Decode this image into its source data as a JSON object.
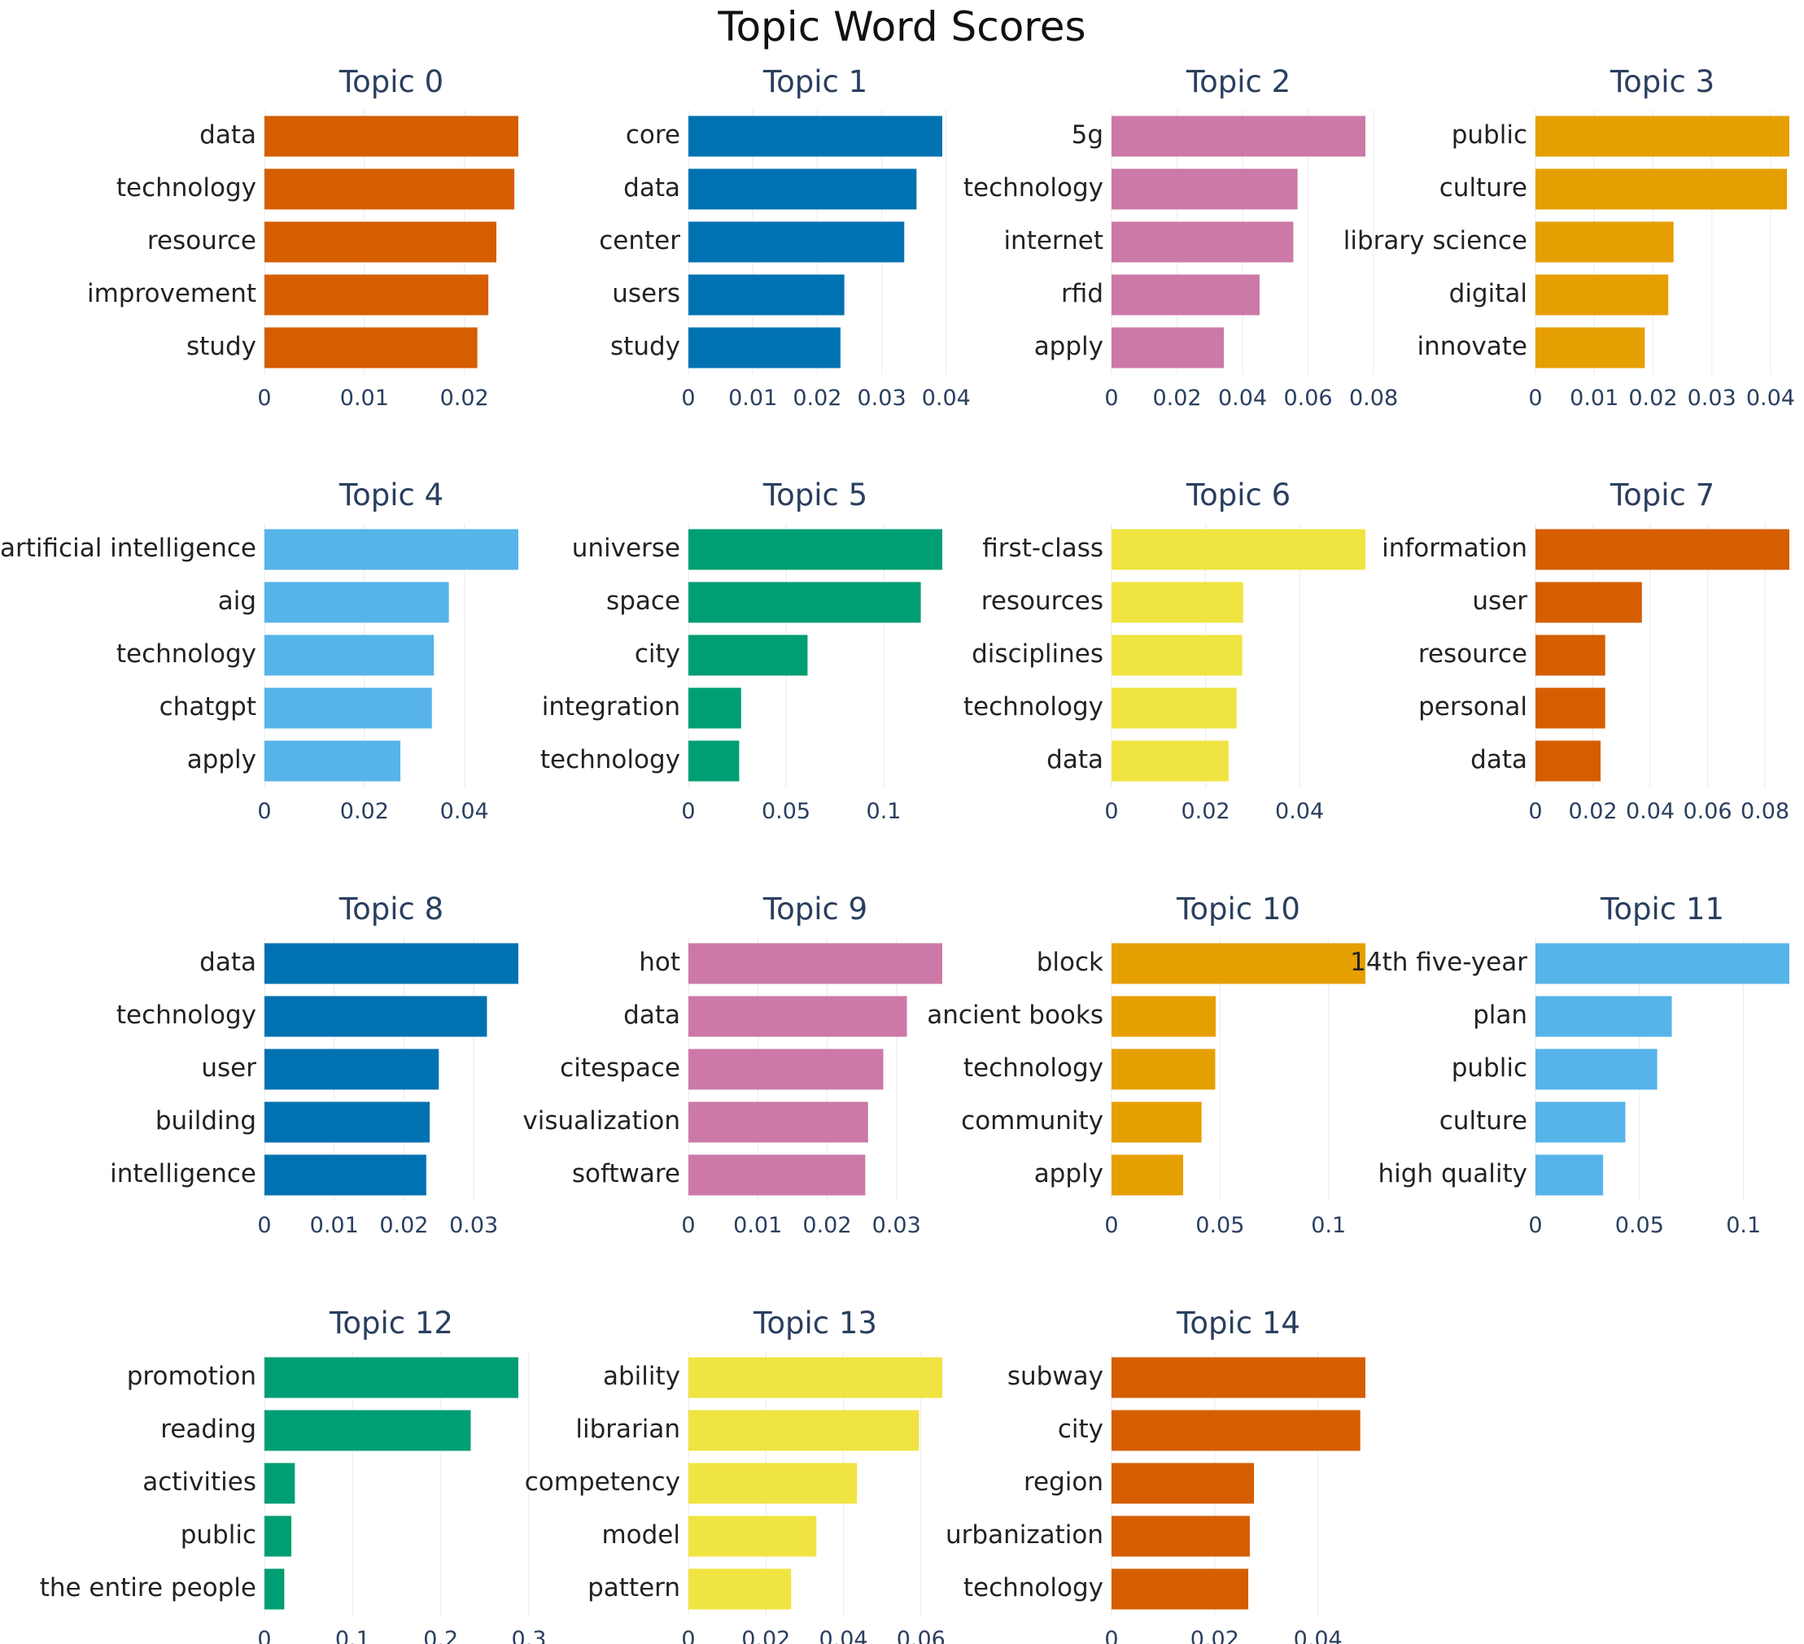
{
  "title": "Topic Word Scores",
  "chart_data": [
    {
      "type": "bar",
      "orientation": "horizontal",
      "title": "Topic 0",
      "color": "#d55e00",
      "categories": [
        "data",
        "technology",
        "resource",
        "improvement",
        "study"
      ],
      "values": [
        0.0254,
        0.025,
        0.0232,
        0.0224,
        0.0213
      ],
      "xlim": [
        0,
        0.0254
      ],
      "ticks": [
        0,
        0.01,
        0.02
      ],
      "tick_labels": [
        "0",
        "0.01",
        "0.02"
      ]
    },
    {
      "type": "bar",
      "orientation": "horizontal",
      "title": "Topic 1",
      "color": "#0072b2",
      "categories": [
        "core",
        "data",
        "center",
        "users",
        "study"
      ],
      "values": [
        0.0394,
        0.0354,
        0.0335,
        0.0242,
        0.0236
      ],
      "xlim": [
        0,
        0.0394
      ],
      "ticks": [
        0,
        0.01,
        0.02,
        0.03,
        0.04
      ],
      "tick_labels": [
        "0",
        "0.01",
        "0.02",
        "0.03",
        "0.04"
      ]
    },
    {
      "type": "bar",
      "orientation": "horizontal",
      "title": "Topic 2",
      "color": "#cc79a7",
      "categories": [
        "5g",
        "technology",
        "internet",
        "rfid",
        "apply"
      ],
      "values": [
        0.0775,
        0.0568,
        0.0555,
        0.0452,
        0.0343
      ],
      "xlim": [
        0,
        0.0775
      ],
      "ticks": [
        0,
        0.02,
        0.04,
        0.06,
        0.08
      ],
      "tick_labels": [
        "0",
        "0.02",
        "0.04",
        "0.06",
        "0.08"
      ]
    },
    {
      "type": "bar",
      "orientation": "horizontal",
      "title": "Topic 3",
      "color": "#e69f00",
      "categories": [
        "public",
        "culture",
        "library science",
        "digital",
        "innovate"
      ],
      "values": [
        0.0432,
        0.0428,
        0.0235,
        0.0226,
        0.0186
      ],
      "xlim": [
        0,
        0.0432
      ],
      "ticks": [
        0,
        0.01,
        0.02,
        0.03,
        0.04
      ],
      "tick_labels": [
        "0",
        "0.01",
        "0.02",
        "0.03",
        "0.04"
      ]
    },
    {
      "type": "bar",
      "orientation": "horizontal",
      "title": "Topic 4",
      "color": "#56b4e9",
      "categories": [
        "artificial intelligence",
        "aig",
        "technology",
        "chatgpt",
        "apply"
      ],
      "values": [
        0.0508,
        0.0369,
        0.0339,
        0.0335,
        0.0272
      ],
      "xlim": [
        0,
        0.0508
      ],
      "ticks": [
        0,
        0.02,
        0.04
      ],
      "tick_labels": [
        "0",
        "0.02",
        "0.04"
      ]
    },
    {
      "type": "bar",
      "orientation": "horizontal",
      "title": "Topic 5",
      "color": "#009e73",
      "categories": [
        "universe",
        "space",
        "city",
        "integration",
        "technology"
      ],
      "values": [
        0.13,
        0.119,
        0.061,
        0.027,
        0.026
      ],
      "xlim": [
        0,
        0.13
      ],
      "ticks": [
        0,
        0.05,
        0.1
      ],
      "tick_labels": [
        "0",
        "0.05",
        "0.1"
      ]
    },
    {
      "type": "bar",
      "orientation": "horizontal",
      "title": "Topic 6",
      "color": "#f0e442",
      "categories": [
        "first-class",
        "resources",
        "disciplines",
        "technology",
        "data"
      ],
      "values": [
        0.054,
        0.028,
        0.0278,
        0.0266,
        0.0249
      ],
      "xlim": [
        0,
        0.054
      ],
      "ticks": [
        0,
        0.02,
        0.04
      ],
      "tick_labels": [
        "0",
        "0.02",
        "0.04"
      ]
    },
    {
      "type": "bar",
      "orientation": "horizontal",
      "title": "Topic 7",
      "color": "#d55e00",
      "categories": [
        "information",
        "user",
        "resource",
        "personal",
        "data"
      ],
      "values": [
        0.0885,
        0.0371,
        0.0243,
        0.0243,
        0.0227
      ],
      "xlim": [
        0,
        0.0885
      ],
      "ticks": [
        0,
        0.02,
        0.04,
        0.06,
        0.08
      ],
      "tick_labels": [
        "0",
        "0.02",
        "0.04",
        "0.06",
        "0.08"
      ]
    },
    {
      "type": "bar",
      "orientation": "horizontal",
      "title": "Topic 8",
      "color": "#0072b2",
      "categories": [
        "data",
        "technology",
        "user",
        "building",
        "intelligence"
      ],
      "values": [
        0.0364,
        0.0319,
        0.025,
        0.0237,
        0.0232
      ],
      "xlim": [
        0,
        0.0364
      ],
      "ticks": [
        0,
        0.01,
        0.02,
        0.03
      ],
      "tick_labels": [
        "0",
        "0.01",
        "0.02",
        "0.03"
      ]
    },
    {
      "type": "bar",
      "orientation": "horizontal",
      "title": "Topic 9",
      "color": "#cc79a7",
      "categories": [
        "hot",
        "data",
        "citespace",
        "visualization",
        "software"
      ],
      "values": [
        0.0366,
        0.0315,
        0.0281,
        0.0259,
        0.0255
      ],
      "xlim": [
        0,
        0.0366
      ],
      "ticks": [
        0,
        0.01,
        0.02,
        0.03
      ],
      "tick_labels": [
        "0",
        "0.01",
        "0.02",
        "0.03"
      ]
    },
    {
      "type": "bar",
      "orientation": "horizontal",
      "title": "Topic 10",
      "color": "#e69f00",
      "categories": [
        "block",
        "ancient books",
        "technology",
        "community",
        "apply"
      ],
      "values": [
        0.117,
        0.048,
        0.0478,
        0.0415,
        0.033
      ],
      "xlim": [
        0,
        0.117
      ],
      "ticks": [
        0,
        0.05,
        0.1
      ],
      "tick_labels": [
        "0",
        "0.05",
        "0.1"
      ]
    },
    {
      "type": "bar",
      "orientation": "horizontal",
      "title": "Topic 11",
      "color": "#56b4e9",
      "categories": [
        "14th five-year",
        "plan",
        "public",
        "culture",
        "high quality"
      ],
      "values": [
        0.122,
        0.0655,
        0.0585,
        0.0432,
        0.0325
      ],
      "xlim": [
        0,
        0.122
      ],
      "ticks": [
        0,
        0.05,
        0.1
      ],
      "tick_labels": [
        "0",
        "0.05",
        "0.1"
      ]
    },
    {
      "type": "bar",
      "orientation": "horizontal",
      "title": "Topic 12",
      "color": "#009e73",
      "categories": [
        "promotion",
        "reading",
        "activities",
        "public",
        "the entire people"
      ],
      "values": [
        0.288,
        0.234,
        0.0345,
        0.0305,
        0.0225
      ],
      "xlim": [
        0,
        0.288
      ],
      "ticks": [
        0,
        0.1,
        0.2,
        0.3
      ],
      "tick_labels": [
        "0",
        "0.1",
        "0.2",
        "0.3"
      ]
    },
    {
      "type": "bar",
      "orientation": "horizontal",
      "title": "Topic 13",
      "color": "#f0e442",
      "categories": [
        "ability",
        "librarian",
        "competency",
        "model",
        "pattern"
      ],
      "values": [
        0.0655,
        0.0595,
        0.0435,
        0.033,
        0.0265
      ],
      "xlim": [
        0,
        0.0655
      ],
      "ticks": [
        0,
        0.02,
        0.04,
        0.06
      ],
      "tick_labels": [
        "0",
        "0.02",
        "0.04",
        "0.06"
      ]
    },
    {
      "type": "bar",
      "orientation": "horizontal",
      "title": "Topic 14",
      "color": "#d55e00",
      "categories": [
        "subway",
        "city",
        "region",
        "urbanization",
        "technology"
      ],
      "values": [
        0.0492,
        0.0482,
        0.0276,
        0.0268,
        0.0265
      ],
      "xlim": [
        0,
        0.0492
      ],
      "ticks": [
        0,
        0.02,
        0.04
      ],
      "tick_labels": [
        "0",
        "0.02",
        "0.04"
      ]
    }
  ]
}
